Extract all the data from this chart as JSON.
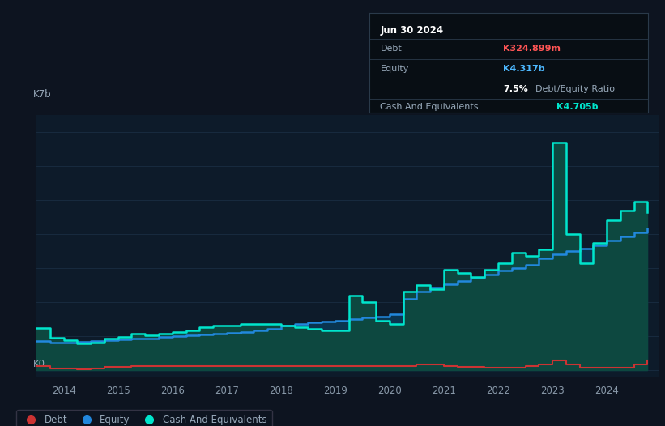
{
  "bg_color": "#0d1420",
  "plot_bg_color": "#0d1b2a",
  "title": "Jun 30 2024",
  "table_data": {
    "Debt": {
      "value": "K324.899m",
      "color": "#ff5555"
    },
    "Equity": {
      "value": "K4.317b",
      "color": "#4db8ff"
    },
    "Cash And Equivalents": {
      "value": "K4.705b",
      "color": "#00e5cc"
    }
  },
  "ylabel_top": "K7b",
  "ylabel_bottom": "K0",
  "xlim": [
    2013.5,
    2024.95
  ],
  "ylim": [
    -0.2,
    7.5
  ],
  "xticks": [
    2014,
    2015,
    2016,
    2017,
    2018,
    2019,
    2020,
    2021,
    2022,
    2023,
    2024
  ],
  "debt_color": "#cc3333",
  "equity_color": "#2288dd",
  "cash_color": "#00e5cc",
  "equity_fill_color": "#0a3550",
  "cash_fill_color": "#0d4840",
  "debt_x": [
    2013.5,
    2013.75,
    2014.0,
    2014.25,
    2014.5,
    2014.75,
    2015.0,
    2015.25,
    2015.5,
    2015.75,
    2016.0,
    2016.25,
    2016.5,
    2016.75,
    2017.0,
    2017.25,
    2017.5,
    2017.75,
    2018.0,
    2018.25,
    2018.5,
    2018.75,
    2019.0,
    2019.25,
    2019.5,
    2019.75,
    2020.0,
    2020.25,
    2020.5,
    2020.75,
    2021.0,
    2021.25,
    2021.5,
    2021.75,
    2022.0,
    2022.25,
    2022.5,
    2022.75,
    2023.0,
    2023.25,
    2023.5,
    2023.75,
    2024.0,
    2024.25,
    2024.5,
    2024.75
  ],
  "debt_y": [
    0.12,
    0.05,
    0.04,
    0.03,
    0.05,
    0.09,
    0.09,
    0.13,
    0.12,
    0.12,
    0.12,
    0.12,
    0.12,
    0.12,
    0.12,
    0.12,
    0.12,
    0.12,
    0.13,
    0.13,
    0.12,
    0.12,
    0.12,
    0.12,
    0.12,
    0.12,
    0.12,
    0.12,
    0.18,
    0.18,
    0.13,
    0.09,
    0.09,
    0.08,
    0.08,
    0.08,
    0.12,
    0.16,
    0.3,
    0.16,
    0.08,
    0.08,
    0.08,
    0.08,
    0.16,
    0.28
  ],
  "equity_x": [
    2013.5,
    2013.75,
    2014.0,
    2014.25,
    2014.5,
    2014.75,
    2015.0,
    2015.25,
    2015.5,
    2015.75,
    2016.0,
    2016.25,
    2016.5,
    2016.75,
    2017.0,
    2017.25,
    2017.5,
    2017.75,
    2018.0,
    2018.25,
    2018.5,
    2018.75,
    2019.0,
    2019.25,
    2019.5,
    2019.75,
    2020.0,
    2020.25,
    2020.5,
    2020.75,
    2021.0,
    2021.25,
    2021.5,
    2021.75,
    2022.0,
    2022.25,
    2022.5,
    2022.75,
    2023.0,
    2023.25,
    2023.5,
    2023.75,
    2024.0,
    2024.25,
    2024.5,
    2024.75
  ],
  "equity_y": [
    0.85,
    0.82,
    0.82,
    0.84,
    0.86,
    0.88,
    0.9,
    0.93,
    0.93,
    0.97,
    1.0,
    1.02,
    1.05,
    1.07,
    1.1,
    1.12,
    1.18,
    1.22,
    1.3,
    1.35,
    1.4,
    1.44,
    1.46,
    1.5,
    1.54,
    1.58,
    1.65,
    2.1,
    2.3,
    2.42,
    2.52,
    2.62,
    2.72,
    2.82,
    2.92,
    3.0,
    3.1,
    3.28,
    3.4,
    3.5,
    3.58,
    3.68,
    3.8,
    3.92,
    4.05,
    4.17
  ],
  "cash_x": [
    2013.5,
    2013.75,
    2014.0,
    2014.25,
    2014.5,
    2014.75,
    2015.0,
    2015.25,
    2015.5,
    2015.75,
    2016.0,
    2016.25,
    2016.5,
    2016.75,
    2017.0,
    2017.25,
    2017.5,
    2017.75,
    2018.0,
    2018.25,
    2018.5,
    2018.75,
    2019.0,
    2019.25,
    2019.5,
    2019.75,
    2020.0,
    2020.25,
    2020.5,
    2020.75,
    2021.0,
    2021.25,
    2021.5,
    2021.75,
    2022.0,
    2022.25,
    2022.5,
    2022.75,
    2023.0,
    2023.25,
    2023.5,
    2023.75,
    2024.0,
    2024.25,
    2024.5,
    2024.75
  ],
  "cash_y": [
    1.25,
    0.95,
    0.88,
    0.78,
    0.82,
    0.92,
    0.97,
    1.07,
    1.02,
    1.07,
    1.12,
    1.17,
    1.27,
    1.32,
    1.32,
    1.35,
    1.37,
    1.37,
    1.32,
    1.27,
    1.22,
    1.17,
    1.17,
    2.2,
    2.0,
    1.45,
    1.35,
    2.3,
    2.5,
    2.38,
    2.95,
    2.85,
    2.75,
    2.95,
    3.15,
    3.45,
    3.35,
    3.55,
    6.7,
    4.0,
    3.15,
    3.75,
    4.4,
    4.7,
    4.95,
    4.65
  ],
  "legend_items": [
    {
      "label": "Debt",
      "color": "#cc3333"
    },
    {
      "label": "Equity",
      "color": "#2288dd"
    },
    {
      "label": "Cash And Equivalents",
      "color": "#00e5cc"
    }
  ],
  "grid_color": "#1a2e42",
  "text_color": "#8898a8",
  "annotation_color": "#99aabb"
}
